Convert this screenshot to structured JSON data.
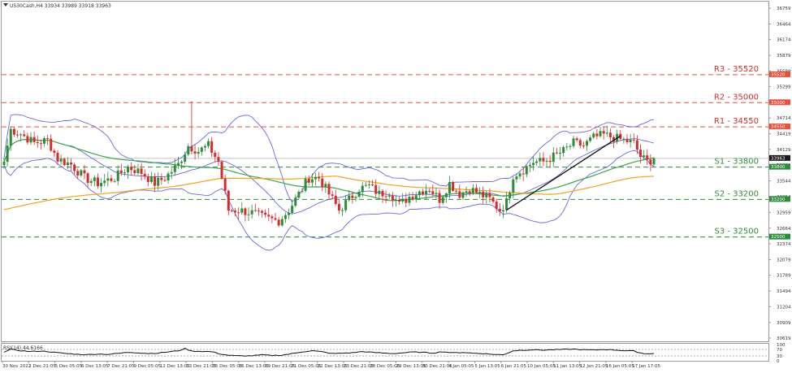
{
  "header": {
    "symbol_line": "US30Cash,H4  33934 33989 33918 33963"
  },
  "rsi_label": "RSI(14) 44.6166",
  "price_scale": {
    "ticks": [
      36759,
      36464,
      36174,
      35879,
      35589,
      35299,
      35004,
      34714,
      34419,
      34129,
      33839,
      33544,
      33254,
      32959,
      32664,
      32374,
      32079,
      31789,
      31494,
      31204,
      30909,
      30619
    ]
  },
  "rsi_scale": {
    "ticks": [
      100,
      70,
      30,
      0
    ]
  },
  "time_axis": {
    "labels": [
      "30 Nov 2022",
      "1 Dec 21:05",
      "5 Dec 05:05",
      "6 Dec 13:05",
      "7 Dec 21:05",
      "9 Dec 05:05",
      "12 Dec 13:05",
      "13 Dec 21:05",
      "15 Dec 05:05",
      "16 Dec 13:05",
      "19 Dec 21:05",
      "21 Dec 05:05",
      "22 Dec 13:05",
      "23 Dec 21:05",
      "28 Dec 05:05",
      "29 Dec 13:05",
      "30 Dec 21:05",
      "4 Jan 05:05",
      "5 Jan 13:05",
      "6 Jan 21:05",
      "10 Jan 05:05",
      "11 Jan 13:05",
      "12 Jan 21:05",
      "16 Jan 05:05",
      "17 Jan 17:05"
    ]
  },
  "levels": [
    {
      "name": "R3",
      "label": "R3 - 35520",
      "value": 35520,
      "tag": "35520",
      "color": "#e8503a",
      "style": "resistance"
    },
    {
      "name": "R2",
      "label": "R2 - 35000",
      "value": 35000,
      "tag": "35000",
      "color": "#e8503a",
      "style": "resistance"
    },
    {
      "name": "R1",
      "label": "R1 - 34550",
      "value": 34550,
      "tag": "34550",
      "color": "#e8503a",
      "style": "resistance"
    },
    {
      "name": "S1",
      "label": "S1 - 33800",
      "value": 33800,
      "tag": "33800",
      "color": "#2e8b3a",
      "style": "support"
    },
    {
      "name": "S2",
      "label": "S2 - 33200",
      "value": 33200,
      "tag": "33200",
      "color": "#2e8b3a",
      "style": "support"
    },
    {
      "name": "S3",
      "label": "S3 - 32500",
      "value": 32500,
      "tag": "32500",
      "color": "#2e8b3a",
      "style": "support"
    }
  ],
  "current_price": {
    "value": 33963,
    "tag": "33963",
    "color": "#1a1a1a"
  },
  "colors": {
    "bull": "#2e8b3a",
    "bear": "#d62b2b",
    "bollinger": "#6a6ad8",
    "ma_fast": "#3aa84a",
    "ma_slow": "#f5a020",
    "trendline": "#111111",
    "rsi_line": "#111111",
    "resistance_text": "#d62b2b",
    "support_text": "#2e8b3a"
  },
  "icons": {
    "symbol_marker": "triangle-down-icon"
  },
  "chart_data": {
    "type": "candlestick",
    "price_range": [
      30619,
      36759
    ],
    "rsi_range": [
      0,
      100
    ],
    "anchors_close": [
      [
        0,
        33900
      ],
      [
        2,
        34500
      ],
      [
        5,
        34420
      ],
      [
        9,
        34250
      ],
      [
        13,
        34300
      ],
      [
        16,
        33950
      ],
      [
        20,
        33850
      ],
      [
        24,
        33600
      ],
      [
        28,
        33500
      ],
      [
        33,
        33600
      ],
      [
        37,
        33800
      ],
      [
        41,
        33700
      ],
      [
        45,
        33500
      ],
      [
        48,
        33600
      ],
      [
        52,
        33850
      ],
      [
        55,
        34200
      ],
      [
        58,
        34100
      ],
      [
        61,
        34200
      ],
      [
        64,
        33900
      ],
      [
        67,
        33000
      ],
      [
        70,
        33000
      ],
      [
        74,
        32950
      ],
      [
        78,
        32850
      ],
      [
        82,
        32800
      ],
      [
        85,
        33000
      ],
      [
        88,
        33300
      ],
      [
        91,
        33600
      ],
      [
        94,
        33600
      ],
      [
        97,
        33300
      ],
      [
        100,
        33000
      ],
      [
        103,
        33200
      ],
      [
        106,
        33400
      ],
      [
        109,
        33450
      ],
      [
        112,
        33300
      ],
      [
        115,
        33350
      ],
      [
        118,
        33100
      ],
      [
        121,
        33250
      ],
      [
        124,
        33350
      ],
      [
        127,
        33400
      ],
      [
        130,
        33200
      ],
      [
        133,
        33500
      ],
      [
        136,
        33300
      ],
      [
        139,
        33400
      ],
      [
        142,
        33300
      ],
      [
        145,
        33200
      ],
      [
        148,
        33000
      ],
      [
        150,
        33150
      ],
      [
        152,
        33650
      ],
      [
        155,
        33750
      ],
      [
        158,
        33900
      ],
      [
        161,
        33900
      ],
      [
        164,
        34000
      ],
      [
        167,
        34100
      ],
      [
        170,
        34250
      ],
      [
        173,
        34200
      ],
      [
        176,
        34350
      ],
      [
        179,
        34400
      ],
      [
        182,
        34350
      ],
      [
        185,
        34300
      ],
      [
        188,
        34250
      ],
      [
        190,
        34000
      ],
      [
        192,
        33900
      ],
      [
        194,
        33963
      ]
    ],
    "trendline": [
      [
        150,
        33000
      ],
      [
        184,
        34380
      ]
    ],
    "rsi_anchors": [
      [
        0,
        53
      ],
      [
        2,
        70
      ],
      [
        5,
        62
      ],
      [
        8,
        57
      ],
      [
        11,
        60
      ],
      [
        14,
        55
      ],
      [
        16,
        50
      ],
      [
        19,
        44
      ],
      [
        22,
        40
      ],
      [
        25,
        38
      ],
      [
        28,
        42
      ],
      [
        31,
        40
      ],
      [
        34,
        45
      ],
      [
        37,
        52
      ],
      [
        40,
        50
      ],
      [
        43,
        45
      ],
      [
        46,
        48
      ],
      [
        49,
        55
      ],
      [
        52,
        62
      ],
      [
        54,
        75
      ],
      [
        56,
        60
      ],
      [
        59,
        58
      ],
      [
        62,
        56
      ],
      [
        65,
        40
      ],
      [
        68,
        32
      ],
      [
        71,
        30
      ],
      [
        74,
        31
      ],
      [
        77,
        36
      ],
      [
        80,
        33
      ],
      [
        83,
        35
      ],
      [
        86,
        44
      ],
      [
        89,
        55
      ],
      [
        92,
        62
      ],
      [
        95,
        55
      ],
      [
        98,
        44
      ],
      [
        101,
        47
      ],
      [
        104,
        50
      ],
      [
        107,
        57
      ],
      [
        110,
        52
      ],
      [
        113,
        48
      ],
      [
        116,
        45
      ],
      [
        119,
        49
      ],
      [
        122,
        54
      ],
      [
        125,
        52
      ],
      [
        128,
        48
      ],
      [
        131,
        56
      ],
      [
        134,
        49
      ],
      [
        137,
        52
      ],
      [
        140,
        47
      ],
      [
        143,
        45
      ],
      [
        146,
        40
      ],
      [
        149,
        37
      ],
      [
        152,
        62
      ],
      [
        155,
        66
      ],
      [
        158,
        68
      ],
      [
        161,
        66
      ],
      [
        164,
        68
      ],
      [
        167,
        70
      ],
      [
        170,
        72
      ],
      [
        173,
        68
      ],
      [
        176,
        66
      ],
      [
        179,
        70
      ],
      [
        182,
        67
      ],
      [
        185,
        63
      ],
      [
        188,
        60
      ],
      [
        191,
        44
      ],
      [
        194,
        45
      ]
    ]
  }
}
